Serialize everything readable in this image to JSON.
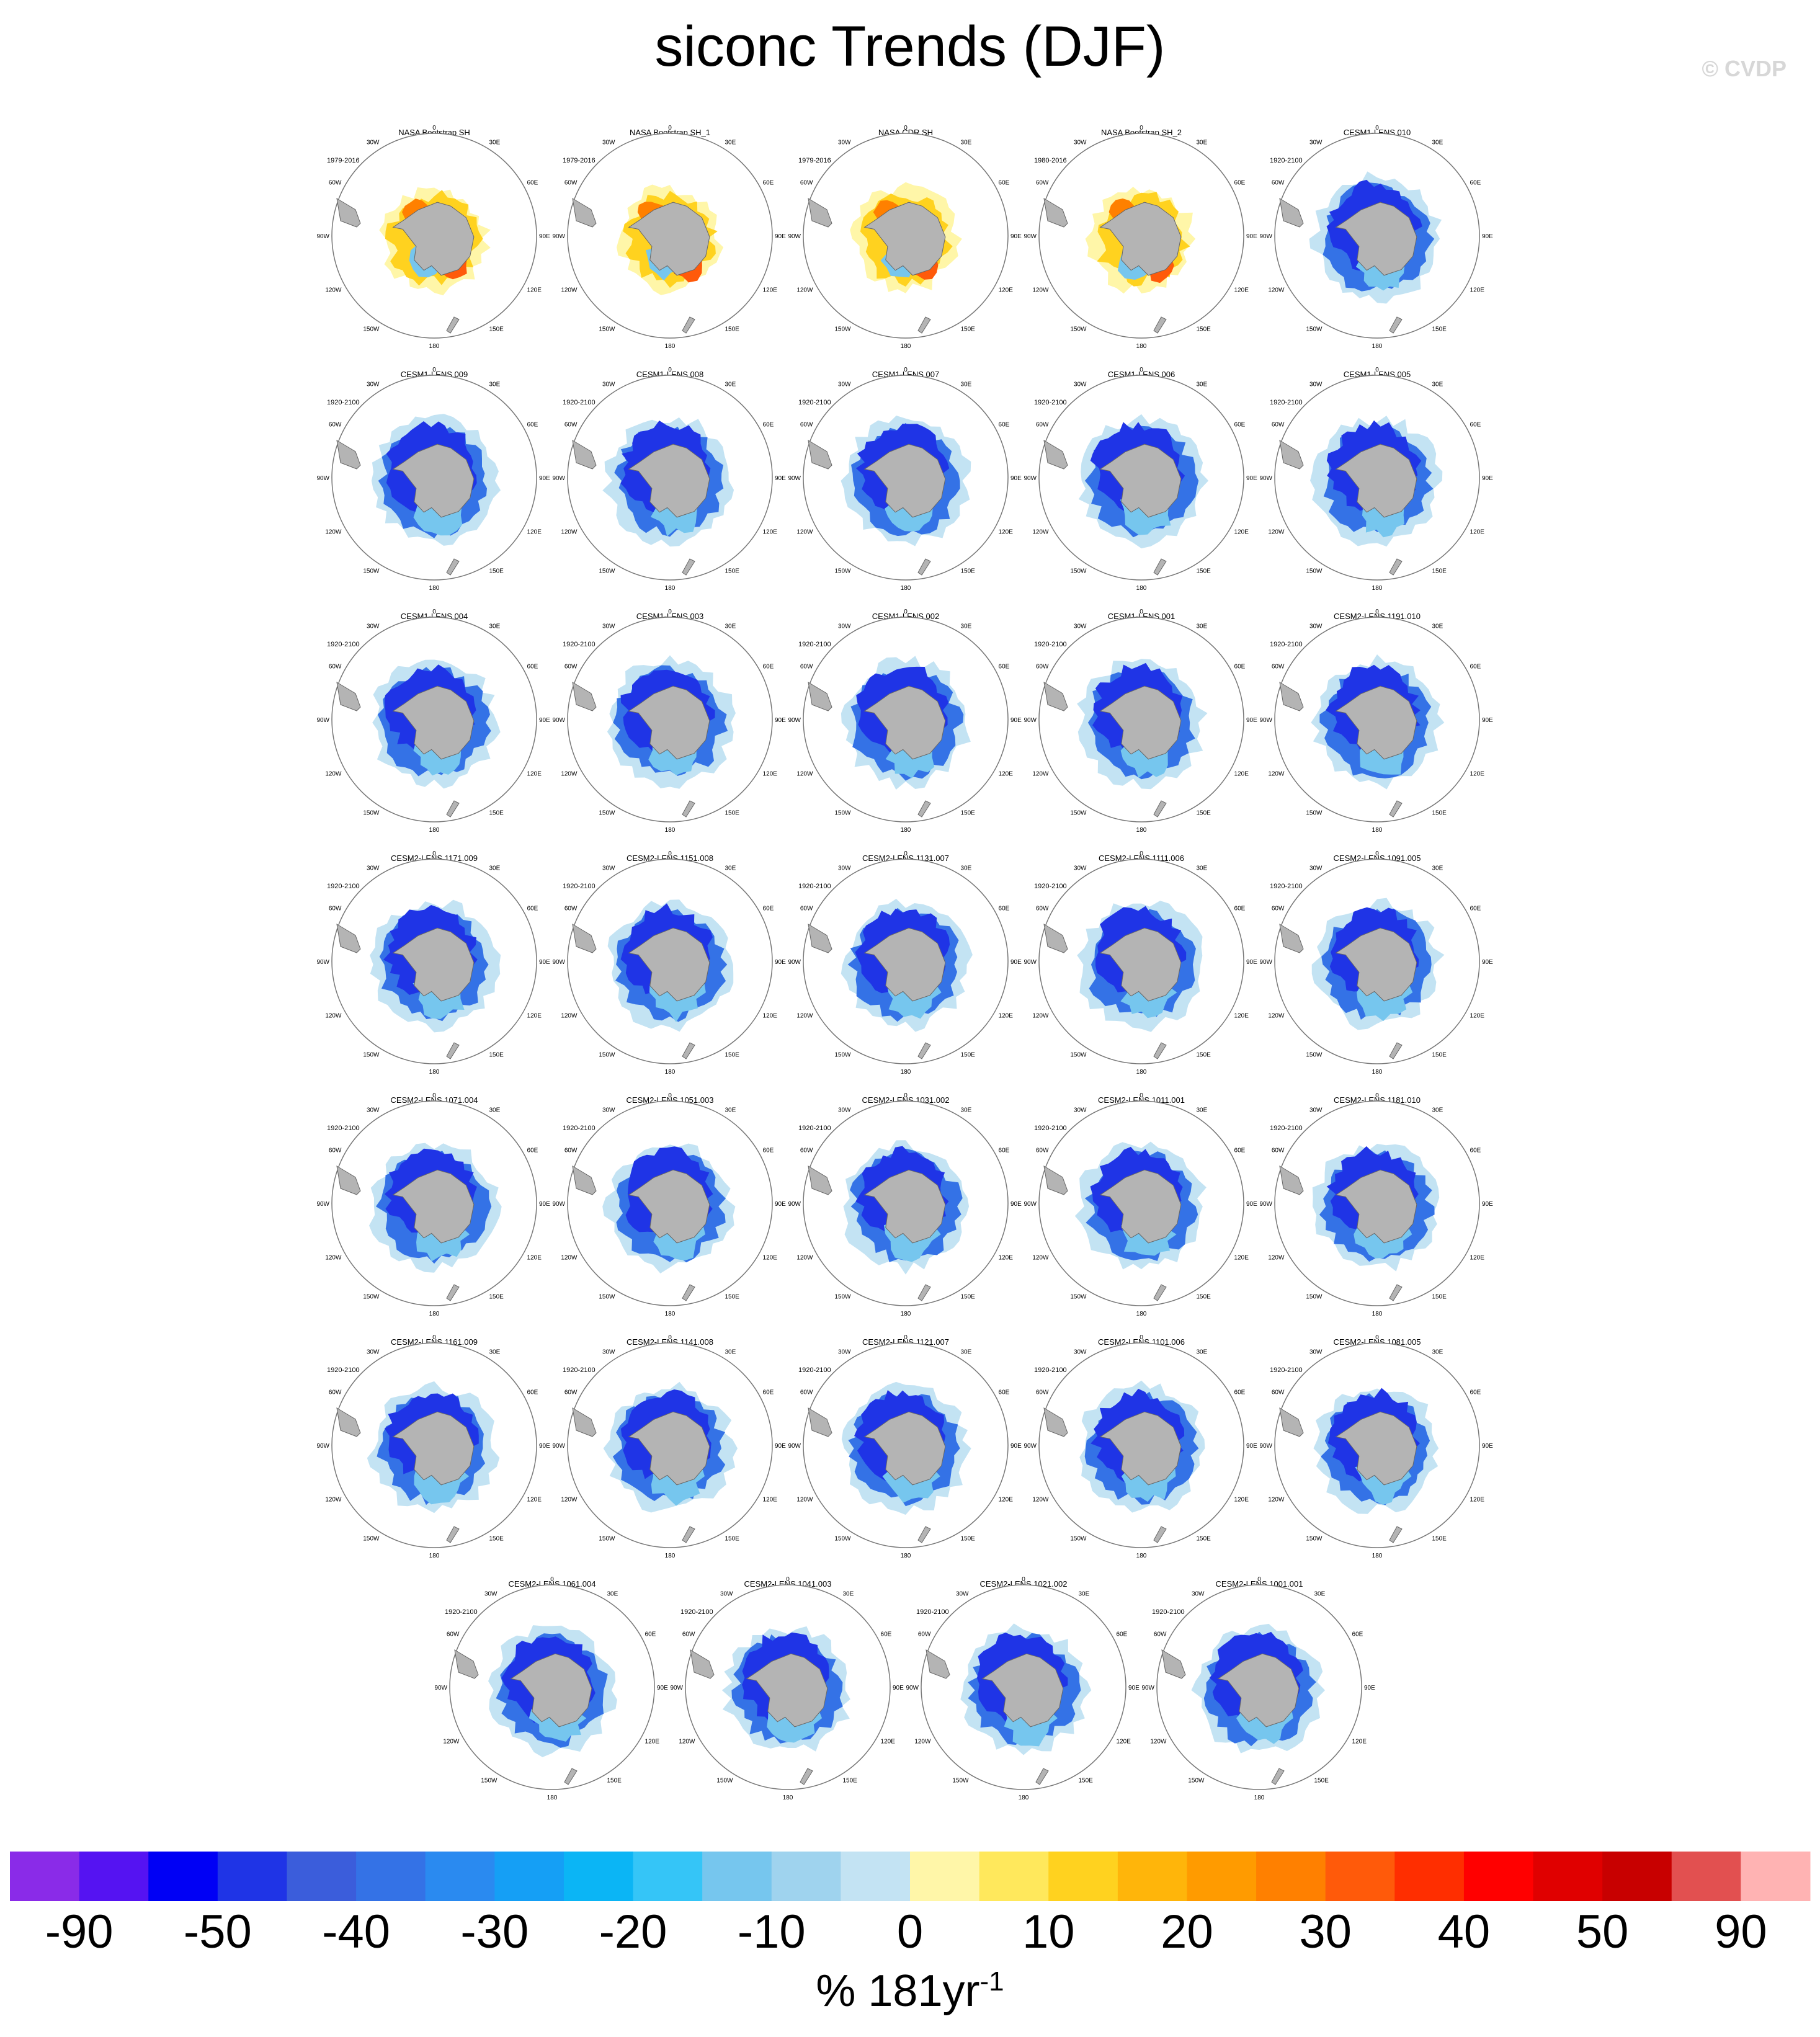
{
  "title": "siconc Trends (DJF)",
  "watermark": "© CVDP",
  "chart_data": {
    "type": "heatmap",
    "projection": "south polar stereographic",
    "variable": "siconc",
    "season": "DJF",
    "map_labels": {
      "top": "0",
      "bottom": "180",
      "left": "90W",
      "right": "90E",
      "upper_left": [
        "30W",
        "60W"
      ],
      "upper_right": [
        "30E",
        "60E"
      ],
      "lower_left": [
        "120W",
        "150W"
      ],
      "lower_right": [
        "120E",
        "150E"
      ]
    },
    "panels": [
      {
        "name": "NASA Bootstrap SH",
        "period": "1979-2016",
        "pattern": "obs"
      },
      {
        "name": "NASA Bootstrap SH_1",
        "period": "1979-2016",
        "pattern": "obs"
      },
      {
        "name": "NASA CDR SH",
        "period": "1979-2016",
        "pattern": "obs"
      },
      {
        "name": "NASA Bootstrap SH_2",
        "period": "1980-2016",
        "pattern": "obs"
      },
      {
        "name": "CESM1-LENS 010",
        "period": "1920-2100",
        "pattern": "model"
      },
      {
        "name": "CESM1-LENS 009",
        "period": "1920-2100",
        "pattern": "model"
      },
      {
        "name": "CESM1-LENS 008",
        "period": "1920-2100",
        "pattern": "model"
      },
      {
        "name": "CESM1-LENS 007",
        "period": "1920-2100",
        "pattern": "model"
      },
      {
        "name": "CESM1-LENS 006",
        "period": "1920-2100",
        "pattern": "model"
      },
      {
        "name": "CESM1-LENS 005",
        "period": "1920-2100",
        "pattern": "model"
      },
      {
        "name": "CESM1-LENS 004",
        "period": "1920-2100",
        "pattern": "model"
      },
      {
        "name": "CESM1-LENS 003",
        "period": "1920-2100",
        "pattern": "model"
      },
      {
        "name": "CESM1-LENS 002",
        "period": "1920-2100",
        "pattern": "model"
      },
      {
        "name": "CESM1-LENS 001",
        "period": "1920-2100",
        "pattern": "model"
      },
      {
        "name": "CESM2-LENS 1191.010",
        "period": "1920-2100",
        "pattern": "model"
      },
      {
        "name": "CESM2-LENS 1171.009",
        "period": "1920-2100",
        "pattern": "model"
      },
      {
        "name": "CESM2-LENS 1151.008",
        "period": "1920-2100",
        "pattern": "model"
      },
      {
        "name": "CESM2-LENS 1131.007",
        "period": "1920-2100",
        "pattern": "model"
      },
      {
        "name": "CESM2-LENS 1111.006",
        "period": "1920-2100",
        "pattern": "model"
      },
      {
        "name": "CESM2-LENS 1091.005",
        "period": "1920-2100",
        "pattern": "model"
      },
      {
        "name": "CESM2-LENS 1071.004",
        "period": "1920-2100",
        "pattern": "model"
      },
      {
        "name": "CESM2-LENS 1051.003",
        "period": "1920-2100",
        "pattern": "model"
      },
      {
        "name": "CESM2-LENS 1031.002",
        "period": "1920-2100",
        "pattern": "model"
      },
      {
        "name": "CESM2-LENS 1011.001",
        "period": "1920-2100",
        "pattern": "model"
      },
      {
        "name": "CESM2-LENS 1181.010",
        "period": "1920-2100",
        "pattern": "model"
      },
      {
        "name": "CESM2-LENS 1161.009",
        "period": "1920-2100",
        "pattern": "model"
      },
      {
        "name": "CESM2-LENS 1141.008",
        "period": "1920-2100",
        "pattern": "model"
      },
      {
        "name": "CESM2-LENS 1121.007",
        "period": "1920-2100",
        "pattern": "model"
      },
      {
        "name": "CESM2-LENS 1101.006",
        "period": "1920-2100",
        "pattern": "model"
      },
      {
        "name": "CESM2-LENS 1081.005",
        "period": "1920-2100",
        "pattern": "model"
      },
      {
        "name": "CESM2-LENS 1061.004",
        "period": "1920-2100",
        "pattern": "model"
      },
      {
        "name": "CESM2-LENS 1041.003",
        "period": "1920-2100",
        "pattern": "model"
      },
      {
        "name": "CESM2-LENS 1021.002",
        "period": "1920-2100",
        "pattern": "model"
      },
      {
        "name": "CESM2-LENS 1001.001",
        "period": "1920-2100",
        "pattern": "model"
      }
    ],
    "colorbar": {
      "units": "% 181yr",
      "units_exponent": "-1",
      "tick_labels": [
        "-90",
        "-50",
        "-40",
        "-30",
        "-20",
        "-10",
        "0",
        "10",
        "20",
        "30",
        "40",
        "50",
        "90"
      ],
      "colors": [
        "#8a2be8",
        "#5513f2",
        "#0000f5",
        "#1f34e6",
        "#3b5ddb",
        "#3472e6",
        "#2a8af0",
        "#159ff5",
        "#0bb5f5",
        "#35c5f7",
        "#76c6ee",
        "#9fd3ee",
        "#c3e3f3",
        "#fff6a8",
        "#ffe85c",
        "#ffd21f",
        "#ffb50a",
        "#ff9b00",
        "#ff8000",
        "#ff5a0a",
        "#ff2e00",
        "#ff0000",
        "#e00000",
        "#c80000",
        "#e25050",
        "#ffb3b3"
      ]
    }
  }
}
